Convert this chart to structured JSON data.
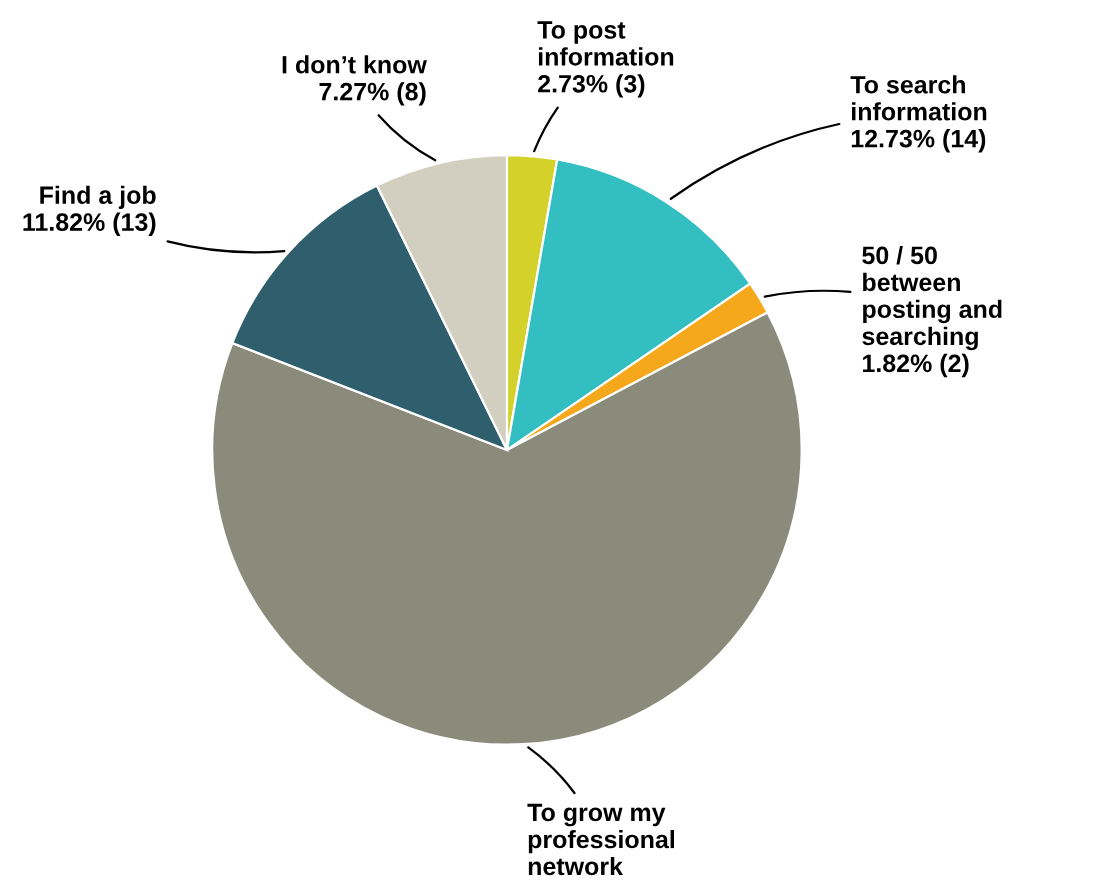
{
  "chart_data": {
    "type": "pie",
    "categories": [
      "To post information",
      "To search information",
      "50 / 50 between posting and searching",
      "To grow my professional network",
      "Find a job",
      "I don’t know"
    ],
    "values": [
      3,
      14,
      2,
      70,
      13,
      8
    ],
    "value_labels": [
      "2.73% (3)",
      "12.73% (14)",
      "1.82% (2)",
      null,
      "11.82% (13)",
      "7.27% (8)"
    ],
    "colors": [
      "#d4d12b",
      "#33bec1",
      "#f5a81c",
      "#8a8b7a",
      "#2f5f6d",
      "#d2cfc1"
    ],
    "legend": false
  }
}
